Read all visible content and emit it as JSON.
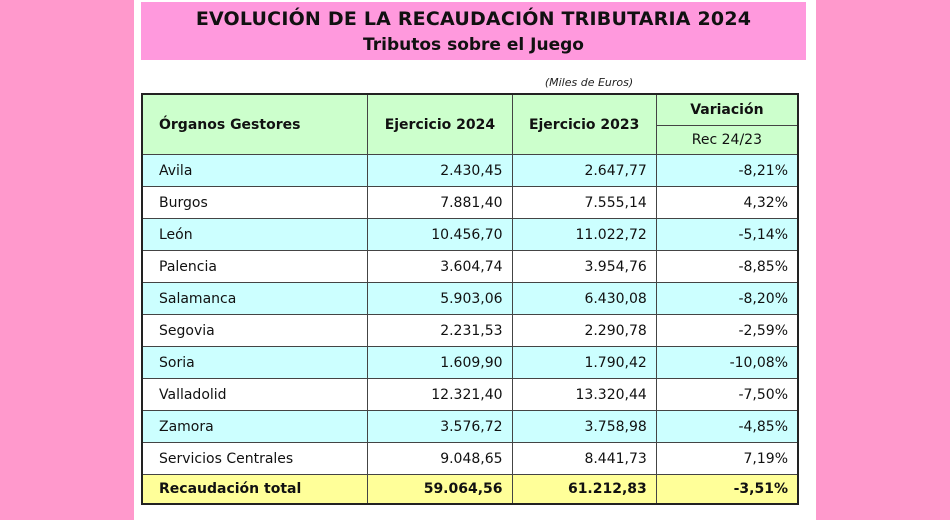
{
  "header": {
    "title": "EVOLUCIÓN DE LA RECAUDACIÓN TRIBUTARIA 2024",
    "subtitle": "Tributos sobre el Juego",
    "units": "(Miles de Euros)"
  },
  "table": {
    "columns": {
      "organo": "Órganos Gestores",
      "ej2024": "Ejercicio 2024",
      "ej2023": "Ejercicio 2023",
      "variacion": "Variación",
      "variacion_sub": "Rec 24/23"
    },
    "rows": [
      {
        "name": "Avila",
        "ej2024": "2.430,45",
        "ej2023": "2.647,77",
        "var": "-8,21%"
      },
      {
        "name": "Burgos",
        "ej2024": "7.881,40",
        "ej2023": "7.555,14",
        "var": "4,32%"
      },
      {
        "name": "León",
        "ej2024": "10.456,70",
        "ej2023": "11.022,72",
        "var": "-5,14%"
      },
      {
        "name": "Palencia",
        "ej2024": "3.604,74",
        "ej2023": "3.954,76",
        "var": "-8,85%"
      },
      {
        "name": "Salamanca",
        "ej2024": "5.903,06",
        "ej2023": "6.430,08",
        "var": "-8,20%"
      },
      {
        "name": "Segovia",
        "ej2024": "2.231,53",
        "ej2023": "2.290,78",
        "var": "-2,59%"
      },
      {
        "name": "Soria",
        "ej2024": "1.609,90",
        "ej2023": "1.790,42",
        "var": "-10,08%"
      },
      {
        "name": "Valladolid",
        "ej2024": "12.321,40",
        "ej2023": "13.320,44",
        "var": "-7,50%"
      },
      {
        "name": "Zamora",
        "ej2024": "3.576,72",
        "ej2023": "3.758,98",
        "var": "-4,85%"
      },
      {
        "name": "Servicios Centrales",
        "ej2024": "9.048,65",
        "ej2023": "8.441,73",
        "var": "7,19%"
      }
    ],
    "total": {
      "name": "Recaudación total",
      "ej2024": "59.064,56",
      "ej2023": "61.212,83",
      "var": "-3,51%"
    }
  },
  "colors": {
    "page_background": "#ff99cc",
    "title_background": "#ff99dd",
    "header_background": "#ccffcc",
    "row_alt_background": "#ccffff",
    "total_background": "#ffff99"
  }
}
